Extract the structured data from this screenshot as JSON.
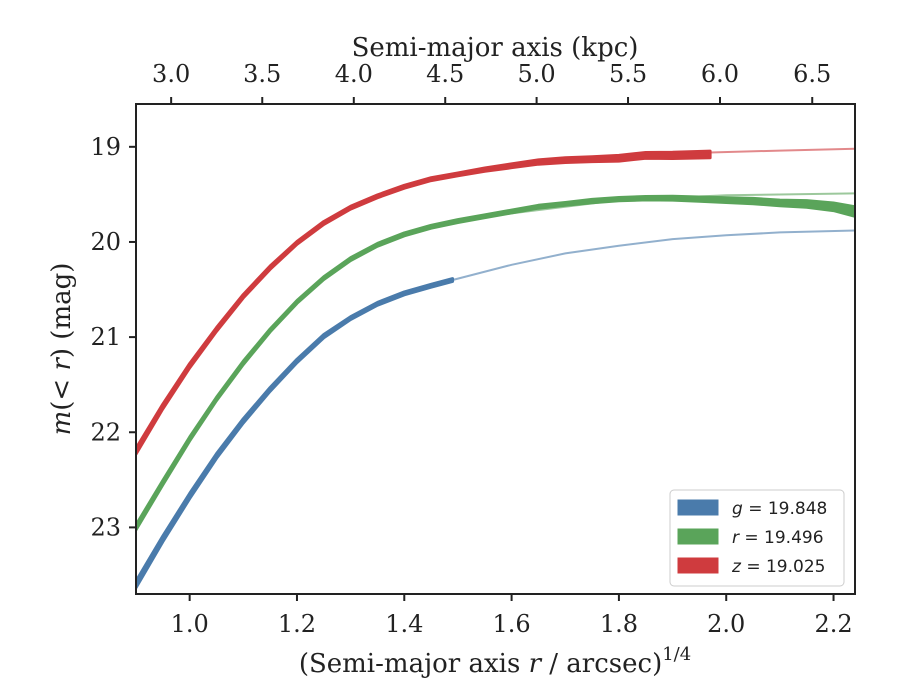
{
  "chart_data": {
    "type": "line",
    "xlabel": "(Semi-major axis r / arcsec)^1/4",
    "xlabel_parts": {
      "prefix": "(Semi-major axis ",
      "var": "r",
      "suffix": " / arcsec)",
      "sup": "1/4"
    },
    "ylabel": "m(< r) (mag)",
    "ylabel_parts": {
      "func": "m",
      "open": "(",
      "lt": "< ",
      "var": "r",
      "close": ")",
      "unit": " (mag)"
    },
    "top_xlabel": "Semi-major axis (kpc)",
    "xlim": [
      0.9,
      2.24
    ],
    "ylim": [
      23.7,
      18.55
    ],
    "y_inverted": true,
    "x_ticks": [
      1.0,
      1.2,
      1.4,
      1.6,
      1.8,
      2.0,
      2.2
    ],
    "x_tick_labels": [
      "1.0",
      "1.2",
      "1.4",
      "1.6",
      "1.8",
      "2.0",
      "2.2"
    ],
    "y_ticks": [
      19,
      20,
      21,
      22,
      23
    ],
    "y_tick_labels": [
      "19",
      "20",
      "21",
      "22",
      "23"
    ],
    "top_ticks_kpc": [
      3.0,
      3.5,
      4.0,
      4.5,
      5.0,
      5.5,
      6.0,
      6.5
    ],
    "top_tick_labels": [
      "3.0",
      "3.5",
      "4.0",
      "4.5",
      "5.0",
      "5.5",
      "6.0",
      "6.5"
    ],
    "top_ticks_x": [
      0.9655,
      1.1353,
      1.3059,
      1.4763,
      1.6466,
      1.817,
      1.9884,
      2.1603
    ],
    "grid": false,
    "legend_position": "lower-right",
    "series": [
      {
        "name": "g = 19.848",
        "band": "g",
        "value": "19.848",
        "color": "#4a7bab",
        "x": [
          0.9,
          0.95,
          1.0,
          1.05,
          1.1,
          1.15,
          1.2,
          1.25,
          1.3,
          1.35,
          1.4,
          1.45,
          1.49
        ],
        "y": [
          23.6,
          23.12,
          22.67,
          22.25,
          21.88,
          21.55,
          21.25,
          20.99,
          20.8,
          20.65,
          20.54,
          20.46,
          20.4
        ],
        "width": [
          0.07,
          0.06,
          0.055,
          0.05,
          0.045,
          0.04,
          0.035,
          0.035,
          0.03,
          0.03,
          0.03,
          0.03,
          0.03
        ],
        "model_x": [
          1.49,
          1.6,
          1.7,
          1.8,
          1.9,
          2.0,
          2.1,
          2.24
        ],
        "model_y": [
          20.4,
          20.24,
          20.12,
          20.04,
          19.97,
          19.93,
          19.9,
          19.88
        ]
      },
      {
        "name": "r = 19.496",
        "band": "r",
        "value": "19.496",
        "color": "#5aa45a",
        "x": [
          0.9,
          0.95,
          1.0,
          1.05,
          1.1,
          1.15,
          1.2,
          1.25,
          1.3,
          1.35,
          1.4,
          1.45,
          1.5,
          1.55,
          1.6,
          1.65,
          1.7,
          1.75,
          1.8,
          1.85,
          1.9,
          1.95,
          2.0,
          2.05,
          2.1,
          2.15,
          2.2,
          2.24
        ],
        "y": [
          23.0,
          22.53,
          22.07,
          21.65,
          21.27,
          20.93,
          20.63,
          20.38,
          20.18,
          20.03,
          19.92,
          19.84,
          19.78,
          19.73,
          19.68,
          19.63,
          19.6,
          19.57,
          19.55,
          19.54,
          19.54,
          19.55,
          19.56,
          19.57,
          19.59,
          19.6,
          19.63,
          19.68
        ],
        "width": [
          0.05,
          0.045,
          0.04,
          0.035,
          0.035,
          0.03,
          0.03,
          0.03,
          0.03,
          0.03,
          0.03,
          0.03,
          0.03,
          0.03,
          0.03,
          0.03,
          0.03,
          0.035,
          0.035,
          0.035,
          0.04,
          0.045,
          0.05,
          0.055,
          0.06,
          0.07,
          0.08,
          0.1
        ],
        "model_x": [
          1.6,
          1.8,
          2.0,
          2.24
        ],
        "model_y": [
          19.7,
          19.56,
          19.51,
          19.49
        ]
      },
      {
        "name": "z = 19.025",
        "band": "z",
        "value": "19.025",
        "color": "#cf3b3e",
        "x": [
          0.9,
          0.95,
          1.0,
          1.05,
          1.1,
          1.15,
          1.2,
          1.25,
          1.3,
          1.35,
          1.4,
          1.45,
          1.5,
          1.55,
          1.6,
          1.65,
          1.7,
          1.75,
          1.8,
          1.85,
          1.9,
          1.97
        ],
        "y": [
          22.2,
          21.73,
          21.3,
          20.92,
          20.57,
          20.27,
          20.01,
          19.8,
          19.64,
          19.52,
          19.42,
          19.34,
          19.29,
          19.24,
          19.2,
          19.16,
          19.14,
          19.13,
          19.12,
          19.09,
          19.09,
          19.08
        ],
        "width": [
          0.06,
          0.05,
          0.045,
          0.04,
          0.035,
          0.035,
          0.03,
          0.03,
          0.03,
          0.03,
          0.03,
          0.03,
          0.03,
          0.035,
          0.04,
          0.045,
          0.05,
          0.05,
          0.06,
          0.06,
          0.065,
          0.07
        ],
        "model_x": [
          1.97,
          2.1,
          2.24
        ],
        "model_y": [
          19.06,
          19.04,
          19.02
        ]
      }
    ]
  }
}
